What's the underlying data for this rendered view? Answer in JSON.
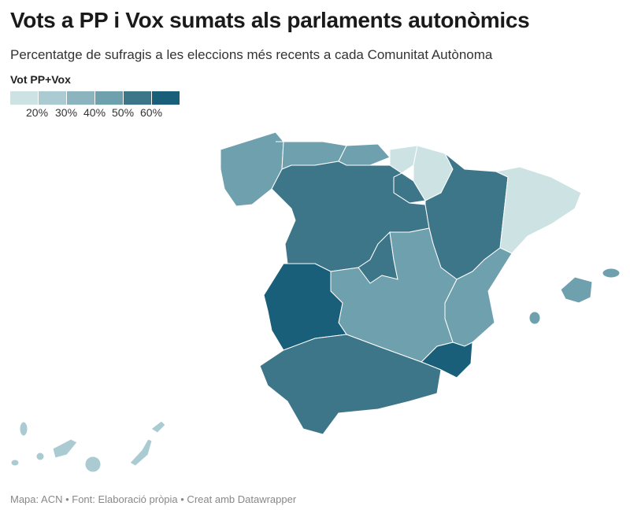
{
  "title": "Vots a PP i Vox sumats als parlaments autonòmics",
  "subtitle": "Percentatge de sufragis a les eleccions més recents a cada Comunitat Autònoma",
  "legend": {
    "title": "Vot PP+Vox",
    "colors": [
      "#cde3e3",
      "#a9cbd1",
      "#8cb4be",
      "#6fa0ae",
      "#3e7689",
      "#195f7a"
    ],
    "ticks": [
      "20%",
      "30%",
      "40%",
      "50%",
      "60%"
    ]
  },
  "map_regions": {
    "galicia": "#6fa0ae",
    "asturias": "#6fa0ae",
    "cantabria": "#6fa0ae",
    "basque": "#cde3e3",
    "navarra": "#cde3e3",
    "rioja": "#3e7689",
    "castilla-leon": "#3e7689",
    "madrid": "#3e7689",
    "aragon": "#3e7689",
    "catalonia": "#cde3e3",
    "valencia": "#6fa0ae",
    "murcia": "#195f7a",
    "castilla-la-mancha": "#6fa0ae",
    "extremadura": "#195f7a",
    "andalusia": "#3e7689",
    "balears": "#6fa0ae",
    "canarias": "#a9cbd1"
  },
  "footer": "Mapa: ACN • Font: Elaboració pròpia • Creat amb Datawrapper"
}
